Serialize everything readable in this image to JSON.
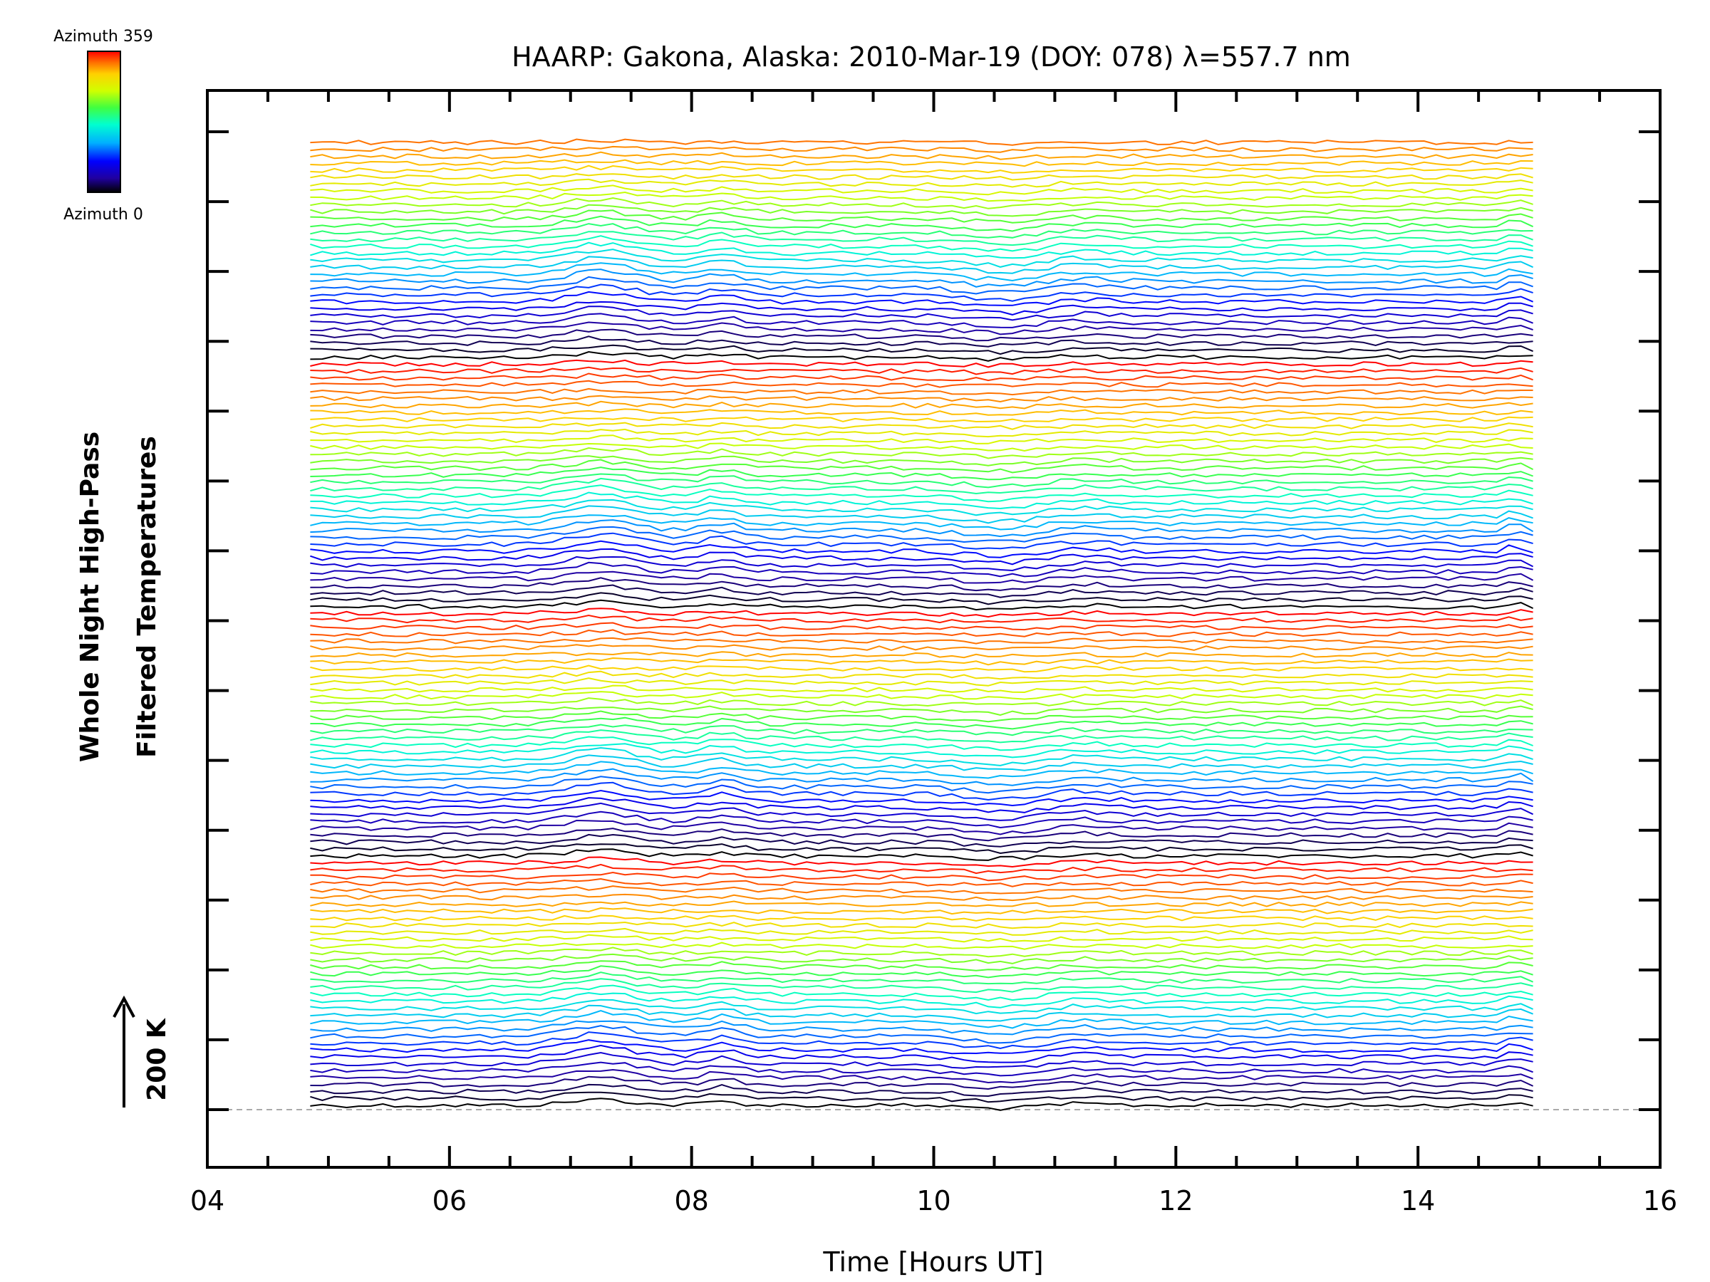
{
  "chart_data": {
    "type": "line",
    "title": "HAARP: Gakona,  Alaska: 2010-Mar-19 (DOY: 078) λ=557.7 nm",
    "xlabel": "Time [Hours UT]",
    "ylabel_line1": "Whole Night High-Pass",
    "ylabel_line2": "Filtered Temperatures",
    "scale_label": "200 K",
    "xlim": [
      4,
      16
    ],
    "x_tick_labels": [
      "04",
      "06",
      "08",
      "10",
      "12",
      "14",
      "16"
    ],
    "x_ticks": [
      4,
      6,
      8,
      10,
      12,
      14,
      16
    ],
    "colorbar": {
      "top_label": "Azimuth 359",
      "bottom_label": "Azimuth 0"
    },
    "colormap": [
      "#000000",
      "#2000a0",
      "#0000ff",
      "#00b0ff",
      "#00ffd0",
      "#40ff40",
      "#d0ff00",
      "#ffd000",
      "#ff7000",
      "#ff0000"
    ],
    "x_start": 4.85,
    "x_end": 14.9,
    "time_step_hours": 0.1,
    "n_traces": 140,
    "azimuth_cycle": 36,
    "events": [
      {
        "x": 7.25,
        "amplitude": 14,
        "width": 0.35
      },
      {
        "x": 8.25,
        "amplitude": 9,
        "width": 0.2
      },
      {
        "x": 10.55,
        "amplitude": -7,
        "width": 0.4
      },
      {
        "x": 11.2,
        "amplitude": 4,
        "width": 0.3
      },
      {
        "x": 14.8,
        "amplitude": 8,
        "width": 0.1
      }
    ]
  }
}
